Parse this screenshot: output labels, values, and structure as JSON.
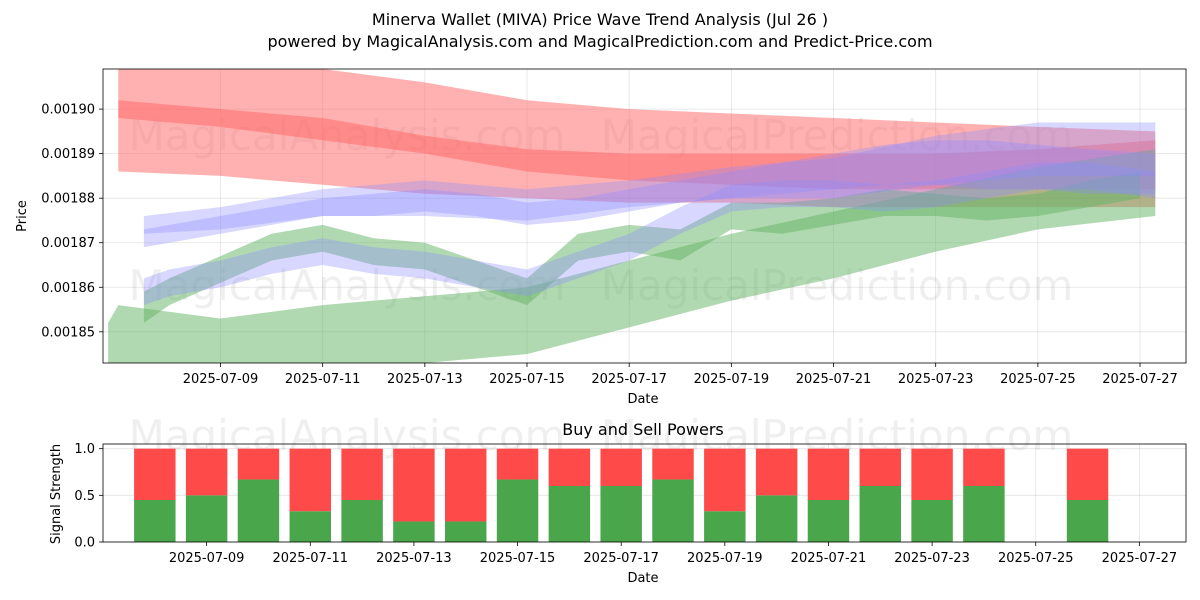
{
  "title_line1": "Minerva Wallet (MIVA) Price Wave Trend Analysis (Jul 26 )",
  "title_line2": "powered by MagicalAnalysis.com and MagicalPrediction.com and Predict-Price.com",
  "watermarks": [
    "MagicalAnalysis.com",
    "MagicalPrediction.com"
  ],
  "colors": {
    "buy": "#4aa64a",
    "sell": "#ff4a4a",
    "red_band": "#ff6464",
    "green_band": "#63b463",
    "blue_band": "#8c8cff"
  },
  "chart_data": [
    {
      "type": "area",
      "title": "",
      "xlabel": "Date",
      "ylabel": "Price",
      "x_ticks": [
        "2025-07-09",
        "2025-07-11",
        "2025-07-13",
        "2025-07-15",
        "2025-07-17",
        "2025-07-19",
        "2025-07-21",
        "2025-07-23",
        "2025-07-25",
        "2025-07-27"
      ],
      "y_ticks": [
        "0.00185",
        "0.00186",
        "0.00187",
        "0.00188",
        "0.00189",
        "0.00190"
      ],
      "xlim": [
        "2025-07-06.7",
        "2025-07-27.9"
      ],
      "ylim": [
        0.001843,
        0.001909
      ],
      "grid": true,
      "series": [
        {
          "color": "red",
          "kind": "band",
          "x": [
            "2025-07-07",
            "2025-07-09",
            "2025-07-11",
            "2025-07-13",
            "2025-07-15",
            "2025-07-17",
            "2025-07-19",
            "2025-07-21",
            "2025-07-23",
            "2025-07-25",
            "2025-07-27.3"
          ],
          "upper": [
            0.001911,
            0.00191,
            0.001909,
            0.001906,
            0.001902,
            0.0019,
            0.001899,
            0.001898,
            0.001897,
            0.001896,
            0.001895
          ],
          "lower": [
            0.001886,
            0.001885,
            0.001883,
            0.001881,
            0.00188,
            0.001879,
            0.001879,
            0.001878,
            0.001878,
            0.001878,
            0.001878
          ]
        },
        {
          "color": "red",
          "kind": "band",
          "x": [
            "2025-07-07",
            "2025-07-09",
            "2025-07-11",
            "2025-07-13",
            "2025-07-15",
            "2025-07-17",
            "2025-07-19",
            "2025-07-21",
            "2025-07-23",
            "2025-07-25",
            "2025-07-27.3"
          ],
          "upper": [
            0.001902,
            0.0019,
            0.001898,
            0.001894,
            0.001891,
            0.00189,
            0.00189,
            0.00189,
            0.00189,
            0.001891,
            0.001893
          ],
          "lower": [
            0.001898,
            0.001896,
            0.001893,
            0.00189,
            0.001886,
            0.001884,
            0.001883,
            0.001882,
            0.001882,
            0.001882,
            0.001882
          ]
        },
        {
          "color": "green",
          "kind": "band",
          "x": [
            "2025-07-06.8",
            "2025-07-07",
            "2025-07-09",
            "2025-07-11",
            "2025-07-13",
            "2025-07-15",
            "2025-07-17",
            "2025-07-19",
            "2025-07-21",
            "2025-07-23",
            "2025-07-25",
            "2025-07-27.3"
          ],
          "upper": [
            0.001852,
            0.001856,
            0.001853,
            0.001856,
            0.001858,
            0.00186,
            0.001866,
            0.001872,
            0.001877,
            0.001882,
            0.001887,
            0.001891
          ],
          "lower": [
            0.001843,
            0.001843,
            0.001843,
            0.001843,
            0.001843,
            0.001845,
            0.001851,
            0.001857,
            0.001862,
            0.001868,
            0.001873,
            0.001876
          ]
        },
        {
          "color": "green",
          "kind": "wave",
          "x": [
            "2025-07-07.5",
            "2025-07-08",
            "2025-07-09",
            "2025-07-10",
            "2025-07-11",
            "2025-07-12",
            "2025-07-13",
            "2025-07-14",
            "2025-07-15",
            "2025-07-16",
            "2025-07-17",
            "2025-07-18",
            "2025-07-19",
            "2025-07-20",
            "2025-07-21",
            "2025-07-22",
            "2025-07-23",
            "2025-07-24",
            "2025-07-25",
            "2025-07-26",
            "2025-07-27"
          ],
          "upper": [
            0.001859,
            0.001862,
            0.001867,
            0.001872,
            0.001874,
            0.001871,
            0.00187,
            0.001866,
            0.001862,
            0.001872,
            0.001874,
            0.001873,
            0.001879,
            0.001879,
            0.00188,
            0.001882,
            0.001881,
            0.00188,
            0.001881,
            0.001884,
            0.001886
          ],
          "lower": [
            0.001852,
            0.001856,
            0.001861,
            0.001866,
            0.001868,
            0.001865,
            0.001864,
            0.00186,
            0.001856,
            0.001866,
            0.001868,
            0.001866,
            0.001873,
            0.001872,
            0.001874,
            0.001876,
            0.001876,
            0.001875,
            0.001876,
            0.001878,
            0.00188
          ]
        },
        {
          "color": "blue",
          "kind": "wave",
          "x": [
            "2025-07-07.5",
            "2025-07-08",
            "2025-07-09",
            "2025-07-10",
            "2025-07-11",
            "2025-07-12",
            "2025-07-13",
            "2025-07-14",
            "2025-07-15",
            "2025-07-16",
            "2025-07-17",
            "2025-07-18",
            "2025-07-19",
            "2025-07-20",
            "2025-07-21",
            "2025-07-22",
            "2025-07-23",
            "2025-07-24",
            "2025-07-25",
            "2025-07-26",
            "2025-07-27.3"
          ],
          "upper": [
            0.001873,
            0.001874,
            0.001876,
            0.001878,
            0.00188,
            0.001881,
            0.001882,
            0.001881,
            0.001879,
            0.00188,
            0.001882,
            0.001884,
            0.001886,
            0.001888,
            0.00189,
            0.001892,
            0.001893,
            0.001893,
            0.001892,
            0.001891,
            0.00189
          ],
          "lower": [
            0.001869,
            0.00187,
            0.001872,
            0.001874,
            0.001876,
            0.001876,
            0.001877,
            0.001876,
            0.001874,
            0.001875,
            0.001877,
            0.001879,
            0.00188,
            0.001881,
            0.001882,
            0.001883,
            0.001883,
            0.001882,
            0.001882,
            0.001881,
            0.001881
          ]
        },
        {
          "color": "blue",
          "kind": "wave",
          "x": [
            "2025-07-07.5",
            "2025-07-08",
            "2025-07-09",
            "2025-07-10",
            "2025-07-11",
            "2025-07-12",
            "2025-07-13",
            "2025-07-14",
            "2025-07-15",
            "2025-07-16",
            "2025-07-17",
            "2025-07-18",
            "2025-07-19",
            "2025-07-20",
            "2025-07-21",
            "2025-07-22",
            "2025-07-23",
            "2025-07-24",
            "2025-07-25",
            "2025-07-26",
            "2025-07-27.3"
          ],
          "upper": [
            0.001862,
            0.001864,
            0.001866,
            0.001869,
            0.001871,
            0.001869,
            0.001868,
            0.001866,
            0.001864,
            0.001868,
            0.001872,
            0.001878,
            0.001883,
            0.001884,
            0.001884,
            0.001883,
            0.001884,
            0.001886,
            0.001888,
            0.001888,
            0.001886
          ],
          "lower": [
            0.001856,
            0.001858,
            0.00186,
            0.001863,
            0.001865,
            0.001863,
            0.001862,
            0.00186,
            0.001858,
            0.001862,
            0.001866,
            0.001872,
            0.001877,
            0.001878,
            0.001878,
            0.001877,
            0.001878,
            0.00188,
            0.001882,
            0.001882,
            0.00188
          ]
        },
        {
          "color": "blue",
          "kind": "band",
          "x": [
            "2025-07-07.5",
            "2025-07-09",
            "2025-07-11",
            "2025-07-13",
            "2025-07-15",
            "2025-07-17",
            "2025-07-19",
            "2025-07-21",
            "2025-07-23",
            "2025-07-25",
            "2025-07-27.3"
          ],
          "upper": [
            0.001876,
            0.001878,
            0.001882,
            0.001884,
            0.001882,
            0.001884,
            0.001887,
            0.001889,
            0.001894,
            0.001897,
            0.001897
          ],
          "lower": [
            0.001872,
            0.001873,
            0.001876,
            0.001876,
            0.001875,
            0.001878,
            0.00188,
            0.00188,
            0.001883,
            0.001885,
            0.001885
          ]
        }
      ]
    },
    {
      "type": "bar",
      "title": "Buy and Sell Powers",
      "xlabel": "Date",
      "ylabel": "Signal Strength",
      "ylim": [
        0,
        1.05
      ],
      "y_ticks": [
        "0.0",
        "0.5",
        "1.0"
      ],
      "x_ticks": [
        "2025-07-09",
        "2025-07-11",
        "2025-07-13",
        "2025-07-15",
        "2025-07-17",
        "2025-07-19",
        "2025-07-21",
        "2025-07-23",
        "2025-07-25",
        "2025-07-27"
      ],
      "grid": true,
      "categories": [
        "2025-07-08",
        "2025-07-09",
        "2025-07-10",
        "2025-07-11",
        "2025-07-12",
        "2025-07-13",
        "2025-07-14",
        "2025-07-15",
        "2025-07-16",
        "2025-07-17",
        "2025-07-18",
        "2025-07-19",
        "2025-07-20",
        "2025-07-21",
        "2025-07-22",
        "2025-07-23",
        "2025-07-24",
        "2025-07-26"
      ],
      "series": [
        {
          "name": "Buy",
          "color": "green",
          "values": [
            0.45,
            0.5,
            0.67,
            0.33,
            0.45,
            0.22,
            0.22,
            0.67,
            0.6,
            0.6,
            0.67,
            0.33,
            0.5,
            0.45,
            0.6,
            0.45,
            0.6,
            0.45
          ]
        },
        {
          "name": "Sell",
          "color": "red",
          "values": [
            0.55,
            0.5,
            0.33,
            0.67,
            0.55,
            0.78,
            0.78,
            0.33,
            0.4,
            0.4,
            0.33,
            0.67,
            0.5,
            0.55,
            0.4,
            0.55,
            0.4,
            0.55
          ]
        }
      ]
    }
  ]
}
